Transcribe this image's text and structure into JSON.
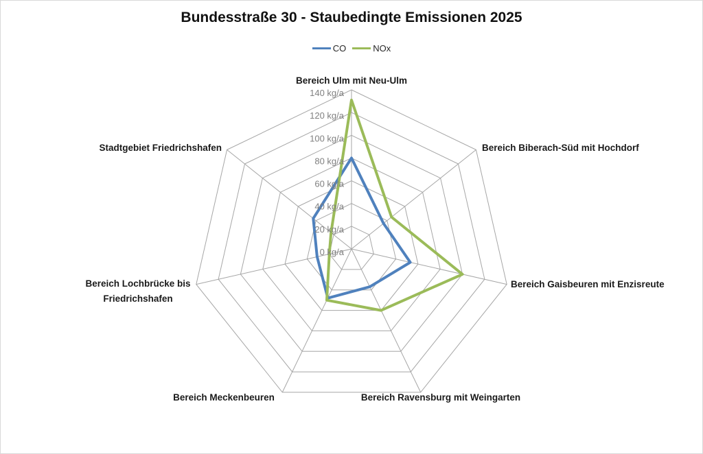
{
  "chart_data": {
    "type": "radar",
    "title": "Bundesstraße 30 - Staubedingte Emissionen 2025",
    "categories": [
      "Bereich Ulm mit Neu-Ulm",
      "Bereich Biberach-Süd mit Hochdorf",
      "Bereich Gaisbeuren mit Enzisreute",
      "Bereich Ravensburg mit Weingarten",
      "Bereich Meckenbeuren",
      "Bereich Lochbrücke bis Friedrichshafen",
      "Stadtgebiet Friedrichshafen"
    ],
    "series": [
      {
        "name": "CO",
        "color": "#4F81BD",
        "values": [
          80,
          36,
          53,
          37,
          48,
          31,
          43
        ]
      },
      {
        "name": "NOx",
        "color": "#9BBB59",
        "values": [
          131,
          45,
          100,
          60,
          50,
          20,
          23
        ]
      }
    ],
    "radial_axis": {
      "min": 0,
      "max": 140,
      "step": 20,
      "unit": "kg/a",
      "tick_labels": [
        "140 kg/a",
        "120 kg/a",
        "100 kg/a",
        "80 kg/a",
        "60 kg/a",
        "40 kg/a",
        "20 kg/a",
        "0 kg/a"
      ]
    },
    "grid": true,
    "grid_color": "#A6A6A6",
    "tick_color": "#808080",
    "label_color": "#1a1a1a",
    "legend_position": "top"
  }
}
